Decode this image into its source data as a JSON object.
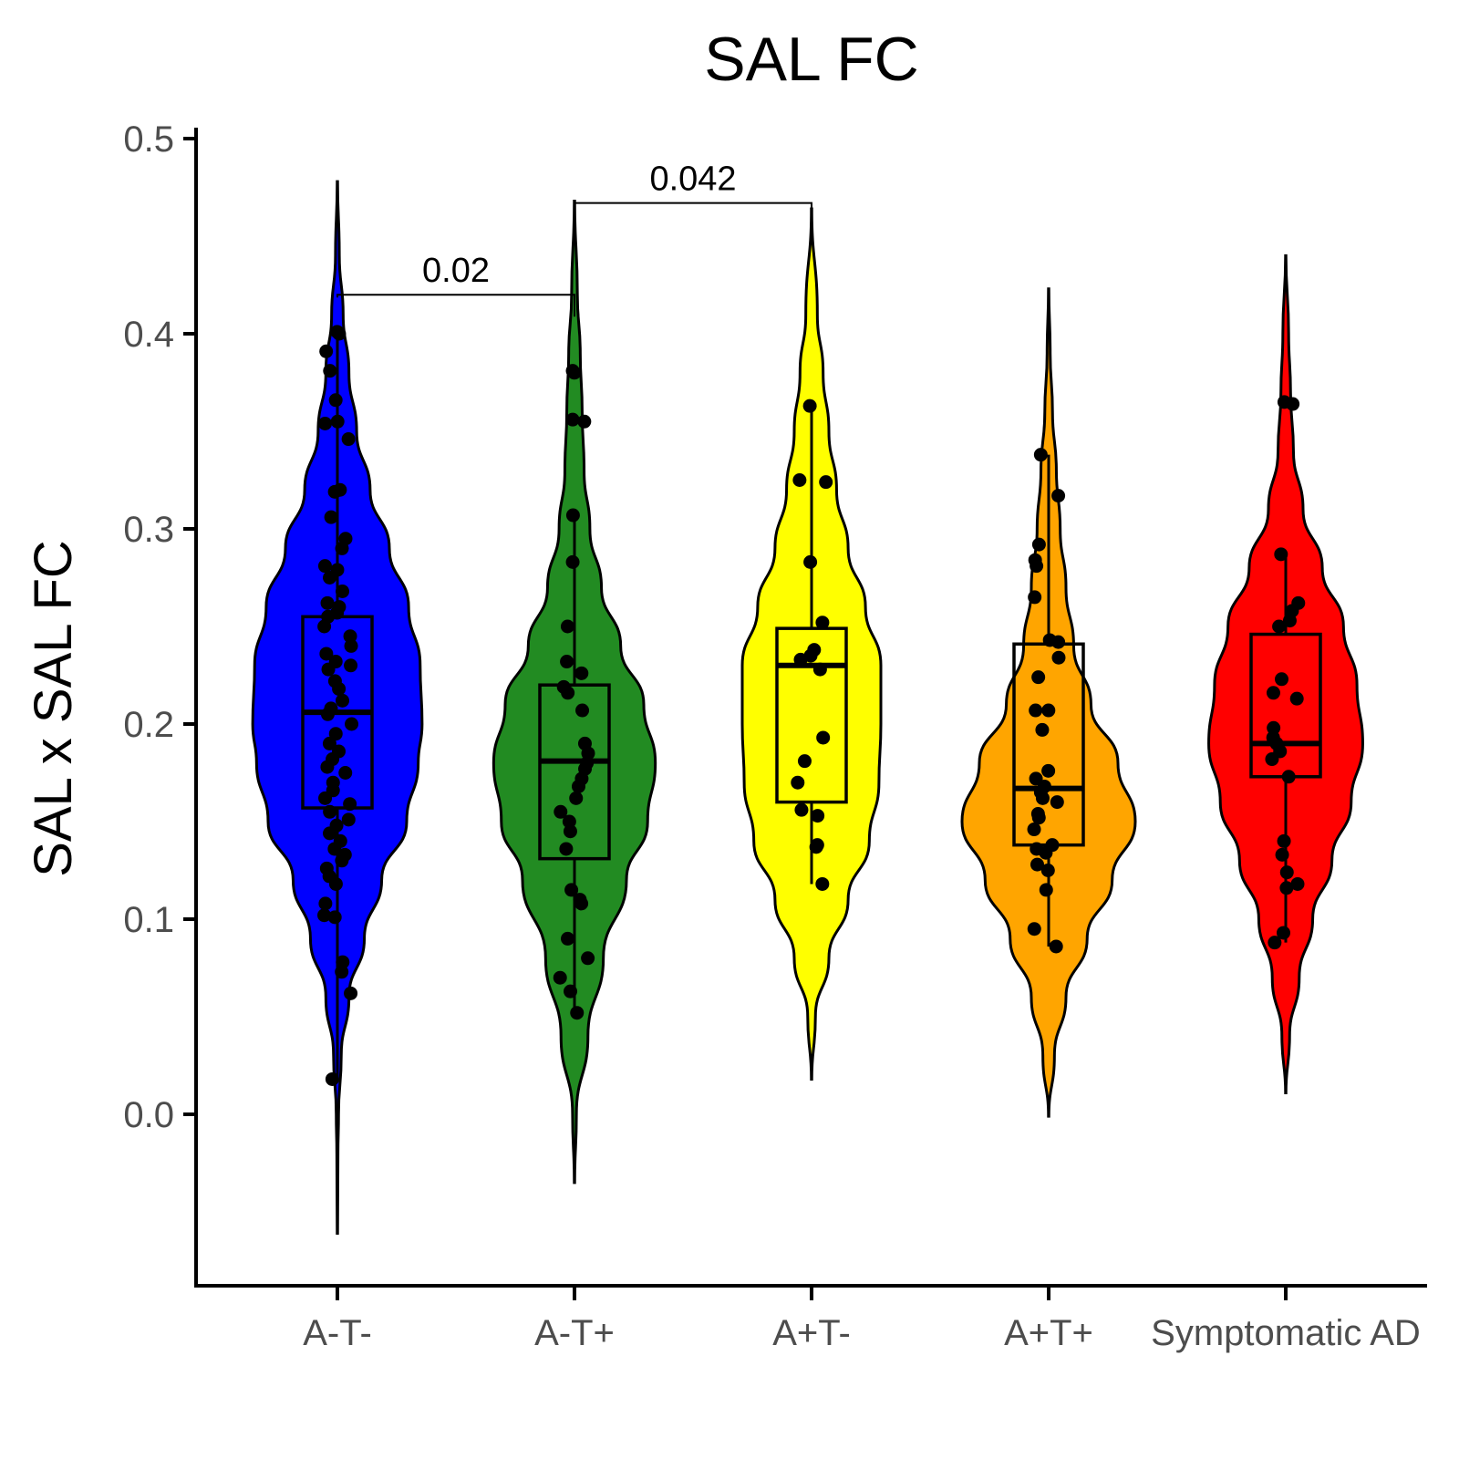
{
  "chart_data": {
    "type": "violin",
    "title": "SAL FC",
    "xlabel": "",
    "ylabel": "SAL x SAL FC",
    "ylim": [
      -0.088,
      0.505
    ],
    "yticks": [
      "0.0",
      "0.1",
      "0.2",
      "0.3",
      "0.4",
      "0.5"
    ],
    "categories": [
      "A-T-",
      "A-T+",
      "A+T-",
      "A+T+",
      "Symptomatic AD"
    ],
    "colors": [
      "#0000ff",
      "#228b22",
      "#ffff00",
      "#ffa500",
      "#ff0000"
    ],
    "grid": false,
    "legend": "none",
    "groups": [
      {
        "name": "A-T-",
        "violin_range": [
          -0.061,
          0.478
        ],
        "density": [
          [
            -0.061,
            0.001
          ],
          [
            -0.02,
            0.003
          ],
          [
            0.0,
            0.006
          ],
          [
            0.03,
            0.02
          ],
          [
            0.06,
            0.06
          ],
          [
            0.09,
            0.14
          ],
          [
            0.12,
            0.23
          ],
          [
            0.15,
            0.36
          ],
          [
            0.18,
            0.42
          ],
          [
            0.2,
            0.44
          ],
          [
            0.23,
            0.43
          ],
          [
            0.26,
            0.37
          ],
          [
            0.29,
            0.27
          ],
          [
            0.32,
            0.17
          ],
          [
            0.35,
            0.1
          ],
          [
            0.38,
            0.06
          ],
          [
            0.41,
            0.03
          ],
          [
            0.44,
            0.01
          ],
          [
            0.478,
            0.001
          ]
        ],
        "box": {
          "q1": 0.157,
          "median": 0.206,
          "q3": 0.255,
          "whisker_low": 0.018,
          "whisker_high": 0.4
        },
        "points": [
          0.401,
          0.4,
          0.391,
          0.381,
          0.366,
          0.355,
          0.354,
          0.346,
          0.32,
          0.319,
          0.306,
          0.295,
          0.29,
          0.281,
          0.279,
          0.275,
          0.268,
          0.262,
          0.26,
          0.257,
          0.255,
          0.25,
          0.245,
          0.24,
          0.236,
          0.232,
          0.23,
          0.228,
          0.222,
          0.218,
          0.212,
          0.208,
          0.205,
          0.2,
          0.195,
          0.19,
          0.186,
          0.182,
          0.178,
          0.175,
          0.17,
          0.166,
          0.162,
          0.159,
          0.155,
          0.151,
          0.148,
          0.144,
          0.14,
          0.136,
          0.133,
          0.13,
          0.126,
          0.122,
          0.118,
          0.108,
          0.102,
          0.101,
          0.078,
          0.073,
          0.062,
          0.018
        ]
      },
      {
        "name": "A-T+",
        "violin_range": [
          -0.035,
          0.468
        ],
        "density": [
          [
            -0.035,
            0.001
          ],
          [
            0.0,
            0.01
          ],
          [
            0.04,
            0.07
          ],
          [
            0.08,
            0.15
          ],
          [
            0.12,
            0.27
          ],
          [
            0.15,
            0.38
          ],
          [
            0.18,
            0.42
          ],
          [
            0.21,
            0.36
          ],
          [
            0.24,
            0.24
          ],
          [
            0.27,
            0.14
          ],
          [
            0.3,
            0.08
          ],
          [
            0.33,
            0.05
          ],
          [
            0.36,
            0.04
          ],
          [
            0.39,
            0.03
          ],
          [
            0.42,
            0.015
          ],
          [
            0.468,
            0.001
          ]
        ],
        "box": {
          "q1": 0.131,
          "median": 0.181,
          "q3": 0.22,
          "whisker_low": 0.052,
          "whisker_high": 0.307
        },
        "points": [
          0.381,
          0.38,
          0.356,
          0.355,
          0.307,
          0.283,
          0.25,
          0.232,
          0.226,
          0.219,
          0.216,
          0.207,
          0.19,
          0.185,
          0.18,
          0.177,
          0.172,
          0.168,
          0.162,
          0.155,
          0.15,
          0.145,
          0.136,
          0.115,
          0.11,
          0.108,
          0.09,
          0.08,
          0.07,
          0.063,
          0.052
        ]
      },
      {
        "name": "A+T-",
        "violin_range": [
          0.018,
          0.464
        ],
        "density": [
          [
            0.018,
            0.001
          ],
          [
            0.05,
            0.02
          ],
          [
            0.08,
            0.09
          ],
          [
            0.11,
            0.19
          ],
          [
            0.14,
            0.3
          ],
          [
            0.17,
            0.35
          ],
          [
            0.2,
            0.36
          ],
          [
            0.23,
            0.36
          ],
          [
            0.26,
            0.28
          ],
          [
            0.29,
            0.19
          ],
          [
            0.32,
            0.13
          ],
          [
            0.35,
            0.09
          ],
          [
            0.38,
            0.06
          ],
          [
            0.41,
            0.03
          ],
          [
            0.464,
            0.001
          ]
        ],
        "box": {
          "q1": 0.16,
          "median": 0.23,
          "q3": 0.249,
          "whisker_low": 0.118,
          "whisker_high": 0.362
        },
        "points": [
          0.363,
          0.325,
          0.324,
          0.283,
          0.252,
          0.238,
          0.235,
          0.233,
          0.228,
          0.193,
          0.181,
          0.17,
          0.156,
          0.153,
          0.138,
          0.137,
          0.118
        ]
      },
      {
        "name": "A+T+",
        "violin_range": [
          -0.001,
          0.423
        ],
        "density": [
          [
            -0.001,
            0.001
          ],
          [
            0.03,
            0.03
          ],
          [
            0.06,
            0.09
          ],
          [
            0.09,
            0.2
          ],
          [
            0.12,
            0.33
          ],
          [
            0.15,
            0.45
          ],
          [
            0.18,
            0.36
          ],
          [
            0.21,
            0.22
          ],
          [
            0.24,
            0.13
          ],
          [
            0.27,
            0.09
          ],
          [
            0.3,
            0.06
          ],
          [
            0.33,
            0.04
          ],
          [
            0.36,
            0.02
          ],
          [
            0.39,
            0.008
          ],
          [
            0.423,
            0.001
          ]
        ],
        "box": {
          "q1": 0.138,
          "median": 0.167,
          "q3": 0.241,
          "whisker_low": 0.086,
          "whisker_high": 0.338
        },
        "points": [
          0.338,
          0.317,
          0.292,
          0.284,
          0.281,
          0.265,
          0.243,
          0.242,
          0.234,
          0.224,
          0.207,
          0.207,
          0.197,
          0.176,
          0.172,
          0.168,
          0.165,
          0.162,
          0.16,
          0.154,
          0.152,
          0.146,
          0.138,
          0.136,
          0.134,
          0.128,
          0.125,
          0.115,
          0.095,
          0.086
        ]
      },
      {
        "name": "Symptomatic AD",
        "violin_range": [
          0.011,
          0.44
        ],
        "density": [
          [
            0.011,
            0.001
          ],
          [
            0.04,
            0.02
          ],
          [
            0.07,
            0.07
          ],
          [
            0.1,
            0.14
          ],
          [
            0.13,
            0.24
          ],
          [
            0.16,
            0.34
          ],
          [
            0.19,
            0.4
          ],
          [
            0.22,
            0.37
          ],
          [
            0.25,
            0.3
          ],
          [
            0.28,
            0.19
          ],
          [
            0.31,
            0.09
          ],
          [
            0.34,
            0.04
          ],
          [
            0.37,
            0.025
          ],
          [
            0.4,
            0.015
          ],
          [
            0.44,
            0.001
          ]
        ],
        "box": {
          "q1": 0.173,
          "median": 0.19,
          "q3": 0.246,
          "whisker_low": 0.088,
          "whisker_high": 0.287
        },
        "points": [
          0.365,
          0.364,
          0.287,
          0.262,
          0.258,
          0.253,
          0.25,
          0.223,
          0.216,
          0.213,
          0.198,
          0.193,
          0.19,
          0.186,
          0.182,
          0.173,
          0.14,
          0.133,
          0.124,
          0.118,
          0.116,
          0.093,
          0.088
        ]
      }
    ],
    "comparisons": [
      {
        "groups": [
          "A-T-",
          "A-T+"
        ],
        "label": "0.02",
        "y": 0.42
      },
      {
        "groups": [
          "A-T+",
          "A+T-"
        ],
        "label": "0.042",
        "y": 0.467
      }
    ]
  }
}
